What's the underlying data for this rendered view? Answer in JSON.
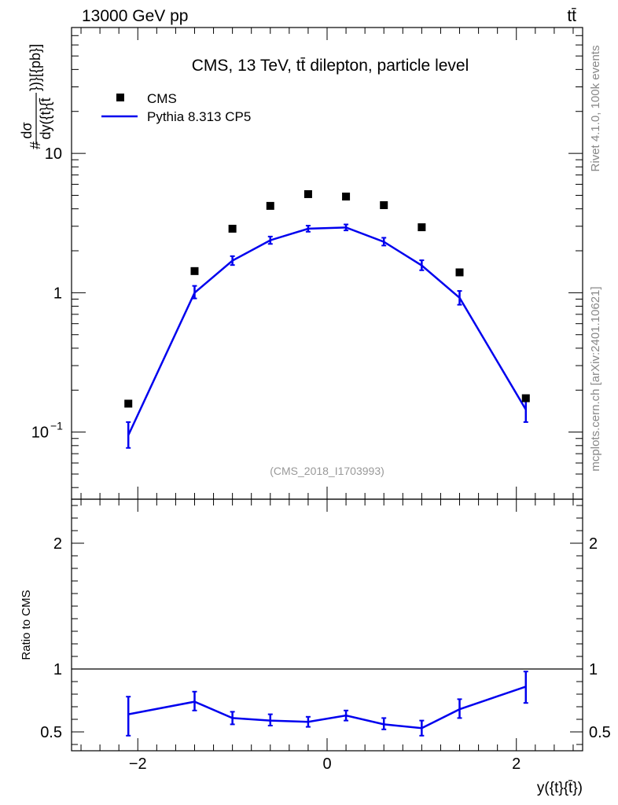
{
  "header": {
    "process": "13000 GeV pp",
    "channel": "tt̄"
  },
  "side_labels": {
    "rivet": "Rivet 4.1.0,  100k events",
    "source": "mcplots.cern.ch [arXiv:2401.10621]"
  },
  "colors": {
    "data": "#000000",
    "mc": "#0000ee",
    "watermark": "#999999",
    "side_text": "#888888"
  },
  "chart_data": [
    {
      "type": "scatter",
      "title": "CMS, 13 TeV, tt̄ dilepton, particle level",
      "ylabel": "#dσ/dy({t}{t̄})}[{pb}]",
      "ylabel_parts": {
        "prefix": "#",
        "numerator": "dσ",
        "denominator": "dy({t}{t̄",
        "suffix": "})}[{pb}]"
      },
      "xlabel": "y({t}{t̄})",
      "yscale": "log",
      "ylim": [
        0.033,
        80
      ],
      "xlim": [
        -2.7,
        2.7
      ],
      "y_ticks": [
        {
          "value": 0.1,
          "label": "10",
          "exp": "−1"
        },
        {
          "value": 1,
          "label": "1"
        },
        {
          "value": 10,
          "label": "10"
        }
      ],
      "x_ticks": [
        {
          "value": -2,
          "label": "−2"
        },
        {
          "value": 0,
          "label": "0"
        },
        {
          "value": 2,
          "label": "2"
        }
      ],
      "watermark": "(CMS_2018_I1703993)",
      "legend": {
        "position": "top-left",
        "entries": [
          "CMS",
          "Pythia 8.313 CP5"
        ]
      },
      "x": [
        -2.1,
        -1.4,
        -1.0,
        -0.6,
        -0.2,
        0.2,
        0.6,
        1.0,
        1.4,
        2.1
      ],
      "series": [
        {
          "name": "CMS",
          "kind": "markers",
          "values": [
            0.16,
            1.43,
            2.88,
            4.2,
            5.1,
            4.9,
            4.25,
            2.95,
            1.4,
            0.175
          ]
        },
        {
          "name": "Pythia 8.313 CP5",
          "kind": "line",
          "values": [
            0.095,
            1.0,
            1.7,
            2.38,
            2.88,
            2.94,
            2.32,
            1.57,
            0.92,
            0.145
          ],
          "err_low": [
            0.077,
            0.91,
            1.58,
            2.24,
            2.74,
            2.8,
            2.18,
            1.45,
            0.82,
            0.118
          ],
          "err_high": [
            0.118,
            1.12,
            1.83,
            2.53,
            3.03,
            3.09,
            2.48,
            1.71,
            1.03,
            0.172
          ]
        }
      ]
    },
    {
      "type": "line",
      "title": "",
      "ylabel": "Ratio to CMS",
      "xlabel": "y({t}{t̄})",
      "ylim": [
        0.35,
        2.35
      ],
      "xlim": [
        -2.7,
        2.7
      ],
      "reference": 1,
      "y_ticks": [
        {
          "value": 0.5,
          "label": "0.5"
        },
        {
          "value": 1,
          "label": "1"
        },
        {
          "value": 2,
          "label": "2"
        }
      ],
      "x": [
        -2.1,
        -1.4,
        -1.0,
        -0.6,
        -0.2,
        0.2,
        0.6,
        1.0,
        1.4,
        2.1
      ],
      "series": [
        {
          "name": "Pythia 8.313 CP5",
          "values": [
            0.64,
            0.74,
            0.61,
            0.59,
            0.58,
            0.63,
            0.56,
            0.53,
            0.68,
            0.86
          ],
          "err_low": [
            0.47,
            0.67,
            0.56,
            0.55,
            0.54,
            0.59,
            0.52,
            0.47,
            0.61,
            0.73
          ],
          "err_high": [
            0.78,
            0.82,
            0.66,
            0.64,
            0.62,
            0.67,
            0.61,
            0.59,
            0.76,
            0.98
          ]
        }
      ]
    }
  ]
}
